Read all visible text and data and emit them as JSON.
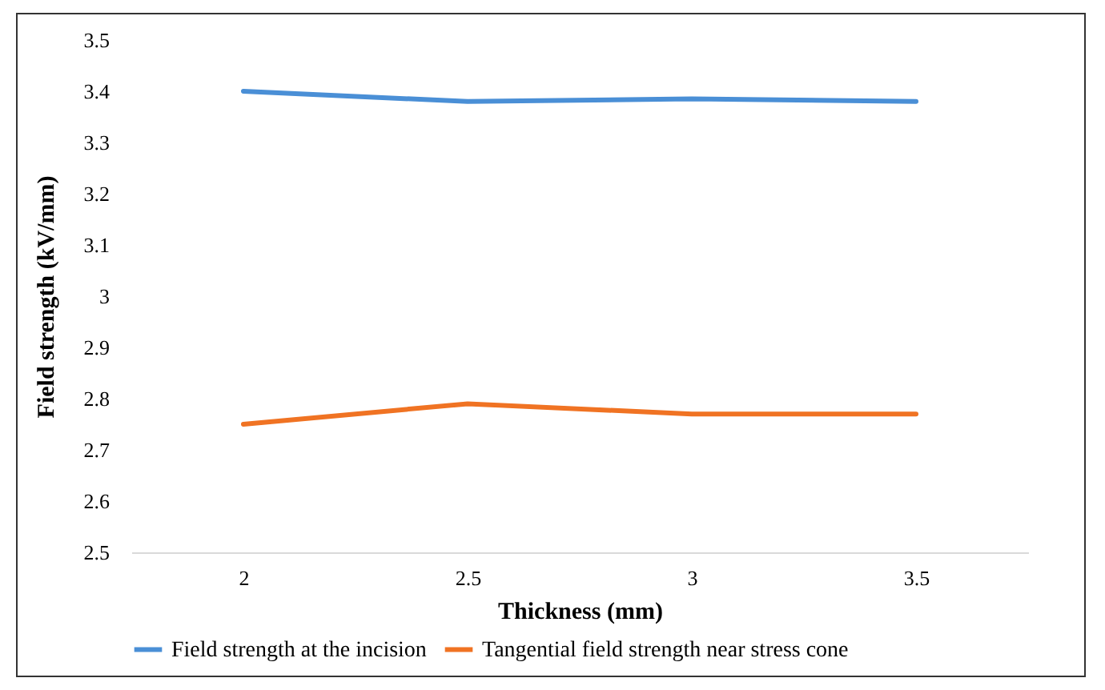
{
  "chart_data": {
    "type": "line",
    "xlabel": "Thickness (mm)",
    "ylabel": "Field strength (kV/mm)",
    "categories": [
      "2",
      "2.5",
      "3",
      "3.5"
    ],
    "series": [
      {
        "name": "Field strength at the incision",
        "color": "#4a8fd6",
        "values": [
          3.4,
          3.38,
          3.385,
          3.38
        ]
      },
      {
        "name": "Tangential field strength near stress cone",
        "color": "#f07323",
        "values": [
          2.75,
          2.79,
          2.77,
          2.77
        ]
      }
    ],
    "ylim": [
      2.5,
      3.5
    ],
    "yticks": [
      2.5,
      2.6,
      2.7,
      2.8,
      2.9,
      3,
      3.1,
      3.2,
      3.3,
      3.4,
      3.5
    ],
    "grid": false,
    "legend": "bottom",
    "marker": "none",
    "line_style": "solid"
  }
}
